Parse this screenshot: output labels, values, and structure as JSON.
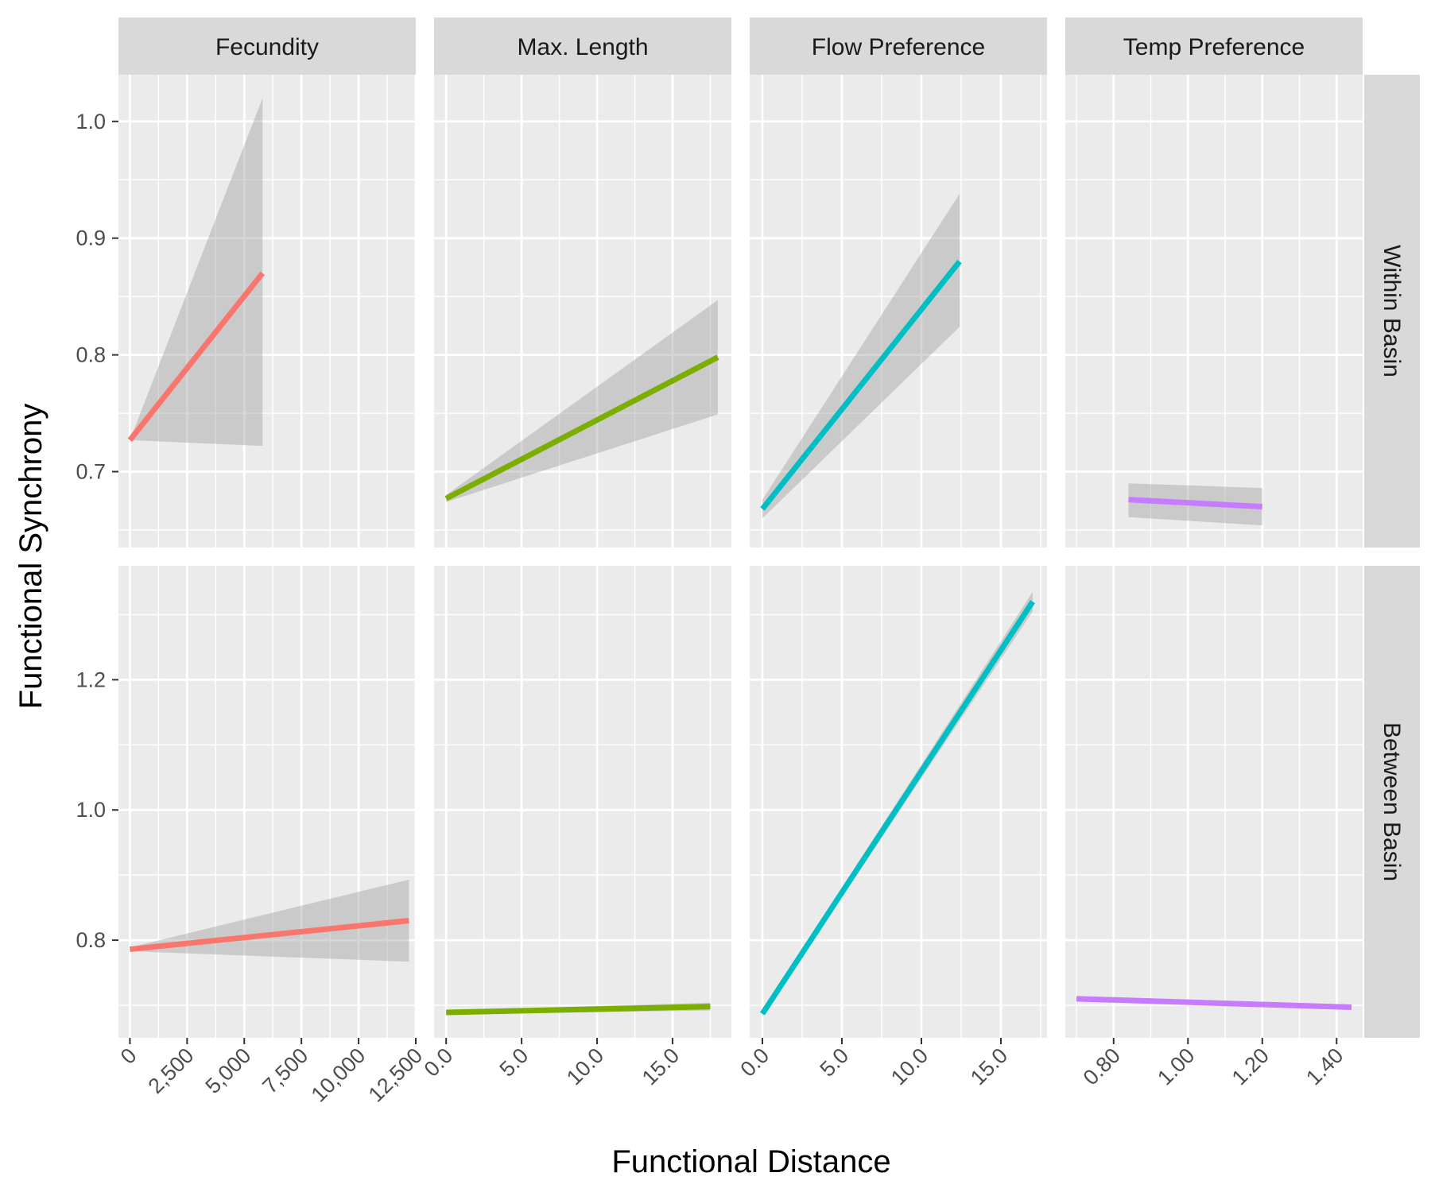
{
  "chart_data": {
    "type": "line",
    "xlabel": "Functional Distance",
    "ylabel": "Functional Synchrony",
    "columns": [
      {
        "name": "Fecundity",
        "color": "#F8766D",
        "xlim": [
          -500,
          12500
        ],
        "ticks": [
          0,
          2500,
          5000,
          7500,
          10000,
          12500
        ],
        "tick_labels": [
          "0",
          "2,500",
          "5,000",
          "7,500",
          "10,000",
          "12,500"
        ]
      },
      {
        "name": "Max. Length",
        "color": "#7CAE00",
        "xlim": [
          -0.8,
          18.9
        ],
        "ticks": [
          0,
          5,
          10,
          15
        ],
        "tick_labels": [
          "0.0",
          "5.0",
          "10.0",
          "15.0"
        ]
      },
      {
        "name": "Flow Preference",
        "color": "#00BFC4",
        "xlim": [
          -0.8,
          17.9
        ],
        "ticks": [
          0,
          5,
          10,
          15
        ],
        "tick_labels": [
          "0.0",
          "5.0",
          "10.0",
          "15.0"
        ]
      },
      {
        "name": "Temp Preference",
        "color": "#C77CFF",
        "xlim": [
          0.67,
          1.47
        ],
        "ticks": [
          0.8,
          1.0,
          1.2,
          1.4
        ],
        "tick_labels": [
          "0.80",
          "1.00",
          "1.20",
          "1.40"
        ]
      }
    ],
    "rows": [
      {
        "name": "Within Basin",
        "ylim": [
          0.635,
          1.04
        ],
        "ticks": [
          0.7,
          0.8,
          0.9,
          1.0
        ],
        "tick_labels": [
          "0.7",
          "0.8",
          "0.9",
          "1.0"
        ]
      },
      {
        "name": "Between Basin",
        "ylim": [
          0.65,
          1.375
        ],
        "ticks": [
          0.8,
          1.0,
          1.2
        ],
        "tick_labels": [
          "0.8",
          "1.0",
          "1.2"
        ]
      }
    ],
    "fits": [
      {
        "row": 0,
        "col": 0,
        "x": [
          0,
          5800
        ],
        "y": [
          0.727,
          0.87
        ],
        "ci_lower": [
          0.727,
          0.722
        ],
        "ci_upper": [
          0.727,
          1.02
        ]
      },
      {
        "row": 0,
        "col": 1,
        "x": [
          0,
          18
        ],
        "y": [
          0.677,
          0.798
        ],
        "ci_lower": [
          0.674,
          0.749
        ],
        "ci_upper": [
          0.68,
          0.847
        ]
      },
      {
        "row": 0,
        "col": 2,
        "x": [
          0,
          12.4
        ],
        "y": [
          0.668,
          0.88
        ],
        "ci_lower": [
          0.66,
          0.824
        ],
        "ci_upper": [
          0.676,
          0.938
        ]
      },
      {
        "row": 0,
        "col": 3,
        "x": [
          0.84,
          1.2
        ],
        "y": [
          0.676,
          0.67
        ],
        "ci_lower": [
          0.661,
          0.654
        ],
        "ci_upper": [
          0.69,
          0.686
        ]
      },
      {
        "row": 1,
        "col": 0,
        "x": [
          0,
          12200
        ],
        "y": [
          0.786,
          0.83
        ],
        "ci_lower": [
          0.783,
          0.767
        ],
        "ci_upper": [
          0.789,
          0.893
        ]
      },
      {
        "row": 1,
        "col": 1,
        "x": [
          0,
          17.5
        ],
        "y": [
          0.689,
          0.698
        ],
        "ci_lower": [
          0.686,
          0.692
        ],
        "ci_upper": [
          0.692,
          0.704
        ]
      },
      {
        "row": 1,
        "col": 2,
        "x": [
          0,
          17
        ],
        "y": [
          0.687,
          1.32
        ],
        "ci_lower": [
          0.683,
          1.305
        ],
        "ci_upper": [
          0.691,
          1.335
        ]
      },
      {
        "row": 1,
        "col": 3,
        "x": [
          0.7,
          1.44
        ],
        "y": [
          0.71,
          0.697
        ],
        "ci_lower": [
          0.706,
          0.693
        ],
        "ci_upper": [
          0.714,
          0.701
        ]
      }
    ]
  }
}
